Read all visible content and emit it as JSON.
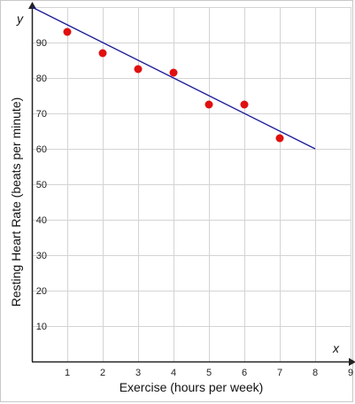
{
  "chart_data": {
    "type": "scatter",
    "xlabel": "Exercise (hours per week)",
    "ylabel": "Resting Heart Rate (beats per minute)",
    "x_var": "x",
    "y_var": "y",
    "xlim": [
      0,
      9
    ],
    "ylim": [
      0,
      100
    ],
    "x_ticks": [
      1,
      2,
      3,
      4,
      5,
      6,
      7,
      8,
      9
    ],
    "y_ticks": [
      10,
      20,
      30,
      40,
      50,
      60,
      70,
      80,
      90
    ],
    "grid": true,
    "legend": "none",
    "series": [
      {
        "type": "scatter",
        "color": "#e01010",
        "points": [
          {
            "x": 1,
            "y": 93
          },
          {
            "x": 2,
            "y": 87
          },
          {
            "x": 3,
            "y": 82.5
          },
          {
            "x": 4,
            "y": 81.5
          },
          {
            "x": 5,
            "y": 72.5
          },
          {
            "x": 6,
            "y": 72.5
          },
          {
            "x": 7,
            "y": 63
          }
        ]
      },
      {
        "type": "line",
        "color": "#1a1a9c",
        "points": [
          {
            "x": 0,
            "y": 100
          },
          {
            "x": 8,
            "y": 60
          }
        ]
      }
    ],
    "colors": {
      "grid": "#d4d4d4",
      "axis": "#222222"
    }
  }
}
